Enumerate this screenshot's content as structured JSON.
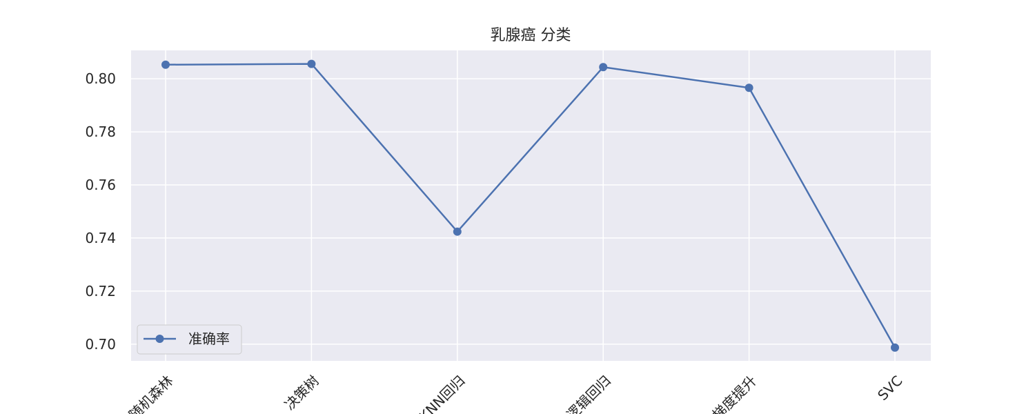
{
  "chart_data": {
    "type": "line",
    "title": "乳腺癌 分类",
    "categories": [
      "随机森林",
      "决策树",
      "KNN回归",
      "逻辑回归",
      "梯度提升",
      "SVC"
    ],
    "series": [
      {
        "name": "准确率",
        "values": [
          0.8053,
          0.8056,
          0.7424,
          0.8044,
          0.7966,
          0.6987
        ],
        "color": "#4c72b0",
        "marker": "circle"
      }
    ],
    "xlabel": "",
    "ylabel": "",
    "ylim": [
      0.6937,
      0.8107
    ],
    "yticks": [
      0.7,
      0.72,
      0.74,
      0.76,
      0.78,
      0.8
    ],
    "ytick_labels": [
      "0.70",
      "0.72",
      "0.74",
      "0.76",
      "0.78",
      "0.80"
    ],
    "grid": true,
    "legend": "lower-left",
    "background_color": "#eaeaf2",
    "grid_color": "#ffffff"
  }
}
